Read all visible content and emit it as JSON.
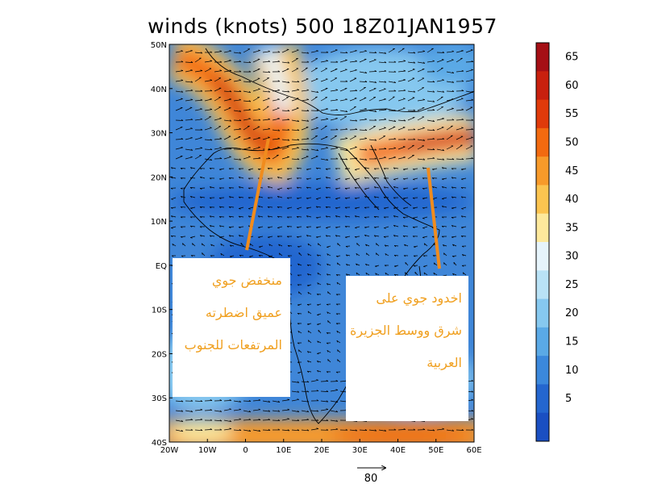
{
  "title": "winds (knots) 500 18Z01JAN1957",
  "lat_labels": [
    "50N",
    "40N",
    "30N",
    "20N",
    "10N",
    "EQ",
    "10S",
    "20S",
    "30S",
    "40S"
  ],
  "lon_labels": [
    "20W",
    "10W",
    "0",
    "10E",
    "20E",
    "30E",
    "40E",
    "50E",
    "60E"
  ],
  "colorbar": {
    "labels": [
      "65",
      "60",
      "55",
      "50",
      "45",
      "40",
      "35",
      "30",
      "25",
      "20",
      "15",
      "10",
      "5"
    ],
    "colors": [
      "#a50f15",
      "#c8200e",
      "#e03a0a",
      "#f26a10",
      "#f79a2a",
      "#fbc450",
      "#fde99c",
      "#e6f4fb",
      "#b9e2f6",
      "#86c8ef",
      "#5aa9e6",
      "#3b88dc",
      "#2466cf",
      "#1a4fc2"
    ]
  },
  "reference_vector": {
    "value": "80"
  },
  "annotations": {
    "left": [
      "منخفض جوي",
      "عميق اضطرته",
      "المرتفعات للجنوب"
    ],
    "right": [
      "اخدود جوي على",
      "شرق ووسط الجزيرة",
      "العربية"
    ]
  },
  "accent_colors": {
    "annotation_text": "#f0a020",
    "arrow_lines": "#f08c1e"
  }
}
